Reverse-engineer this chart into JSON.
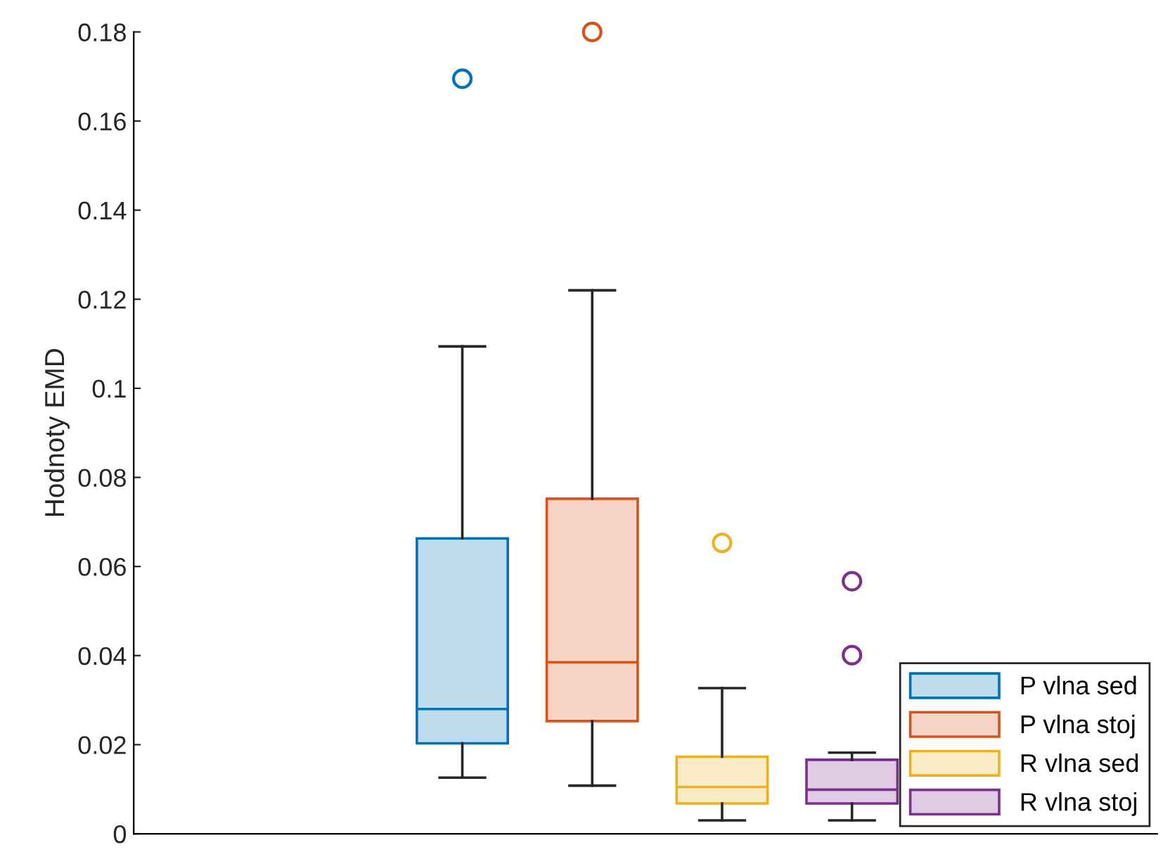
{
  "chart_data": {
    "type": "box",
    "ylabel": "Hodnoty EMD",
    "categories": [
      null
    ],
    "ylim": [
      0,
      0.18
    ],
    "yticks": [
      0,
      0.02,
      0.04,
      0.06,
      0.08,
      0.1,
      0.12,
      0.14,
      0.16,
      0.18
    ],
    "tick_labels": "y",
    "grid": false,
    "legend": "bottom right",
    "series": [
      {
        "name": "P vlna sed",
        "color": "#0072bd",
        "boxes": [
          {
            "low": 0.0126,
            "q1": 0.0203,
            "median": 0.028,
            "q3": 0.0663,
            "high": 0.1094,
            "outliers": [
              0.1695
            ]
          }
        ]
      },
      {
        "name": "P vlna stoj",
        "color": "#d95319",
        "boxes": [
          {
            "low": 0.0108,
            "q1": 0.0253,
            "median": 0.0385,
            "q3": 0.0752,
            "high": 0.122,
            "outliers": [
              0.18
            ]
          }
        ]
      },
      {
        "name": "R vlna sed",
        "color": "#edb120",
        "boxes": [
          {
            "low": 0.003,
            "q1": 0.0068,
            "median": 0.0105,
            "q3": 0.0173,
            "high": 0.0327,
            "outliers": [
              0.0653
            ]
          }
        ]
      },
      {
        "name": "R vlna stoj",
        "color": "#7e2f8e",
        "boxes": [
          {
            "low": 0.003,
            "q1": 0.0068,
            "median": 0.0099,
            "q3": 0.0166,
            "high": 0.0182,
            "outliers": [
              0.0567,
              0.0401
            ]
          }
        ]
      }
    ]
  }
}
